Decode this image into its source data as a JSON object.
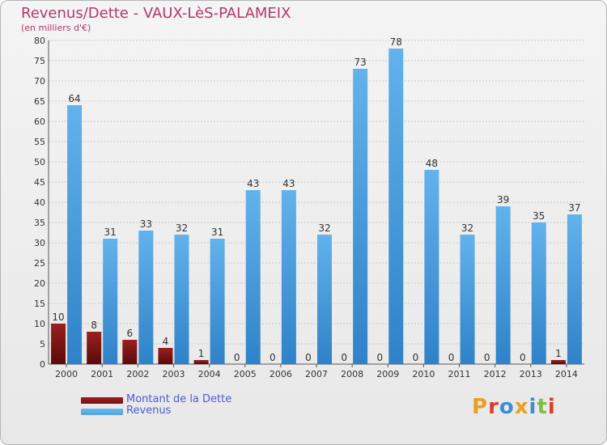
{
  "title": "Revenus/Dette - VAUX-LèS-PALAMEIX",
  "subtitle": "(en milliers d'€)",
  "legend": [
    {
      "label": "Montant de la Dette",
      "color": "#7a1212"
    },
    {
      "label": "Revenus",
      "color": "#4fa3e0"
    }
  ],
  "logo_text": "Proxiti",
  "colors": {
    "title": "#b5376b",
    "dette": "#7a1212",
    "revenus": "#4fa3e0",
    "grid": "#c8c8c8",
    "value_label": "#333333"
  },
  "chart_data": {
    "type": "bar",
    "title": "Revenus/Dette - VAUX-LèS-PALAMEIX",
    "xlabel": "",
    "ylabel": "(en milliers d'€)",
    "ylim": [
      0,
      80
    ],
    "yticks": [
      0,
      5,
      10,
      15,
      20,
      25,
      30,
      35,
      40,
      45,
      50,
      55,
      60,
      65,
      70,
      75,
      80
    ],
    "categories": [
      "2000",
      "2001",
      "2002",
      "2003",
      "2004",
      "2005",
      "2006",
      "2007",
      "2008",
      "2009",
      "2010",
      "2011",
      "2012",
      "2013",
      "2014"
    ],
    "series": [
      {
        "name": "Montant de la Dette",
        "values": [
          10,
          8,
          6,
          4,
          1,
          0,
          0,
          0,
          0,
          0,
          0,
          0,
          0,
          0,
          1
        ]
      },
      {
        "name": "Revenus",
        "values": [
          64,
          31,
          33,
          32,
          31,
          43,
          43,
          32,
          73,
          78,
          48,
          32,
          39,
          35,
          37
        ]
      }
    ],
    "grid": true,
    "legend_position": "bottom-left"
  }
}
